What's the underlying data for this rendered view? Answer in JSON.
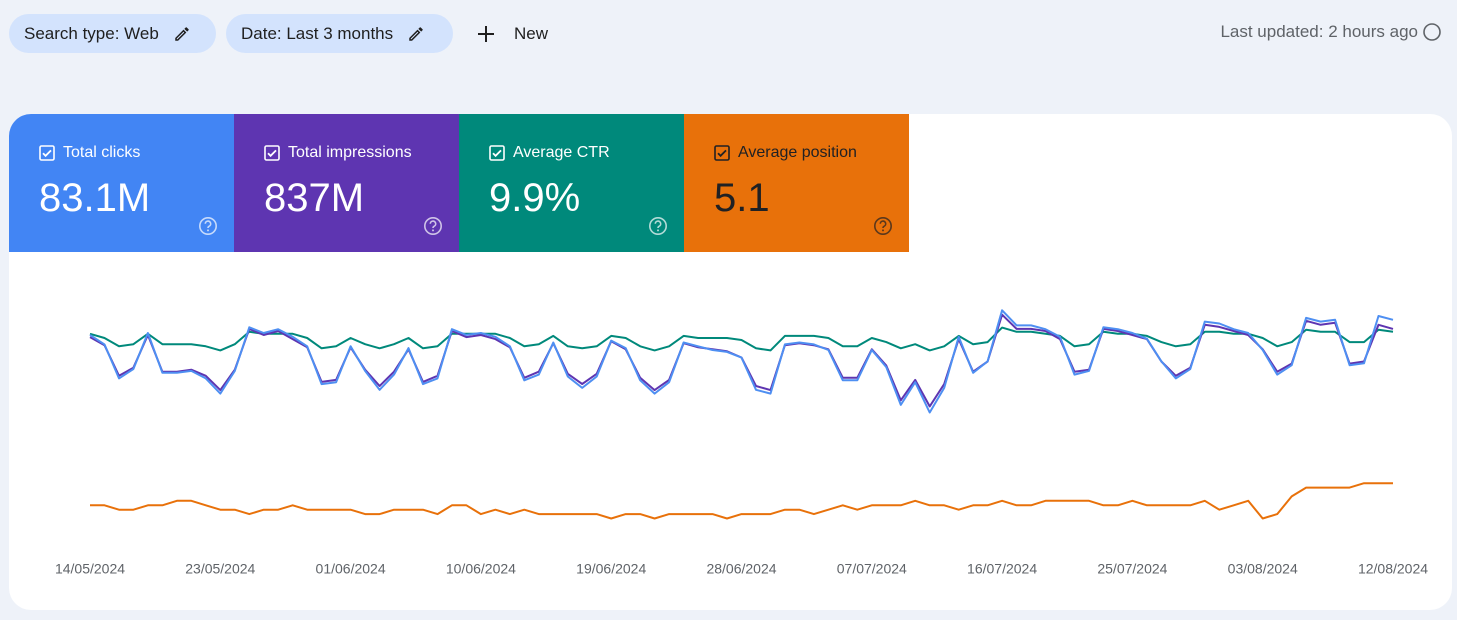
{
  "toolbar": {
    "chips": [
      "Search type: Web",
      "Date: Last 3 months"
    ],
    "new_button": "New",
    "last_updated": "Last updated: 2 hours ago"
  },
  "chart_data": {
    "type": "line",
    "categories": [
      "14/05/2024",
      null,
      null,
      null,
      null,
      null,
      null,
      null,
      null,
      "23/05/2024",
      null,
      null,
      null,
      null,
      null,
      null,
      null,
      null,
      "01/06/2024",
      null,
      null,
      null,
      null,
      null,
      null,
      null,
      null,
      "10/06/2024",
      null,
      null,
      null,
      null,
      null,
      null,
      null,
      null,
      "19/06/2024",
      null,
      null,
      null,
      null,
      null,
      null,
      null,
      null,
      "28/06/2024",
      null,
      null,
      null,
      null,
      null,
      null,
      null,
      null,
      "07/07/2024",
      null,
      null,
      null,
      null,
      null,
      null,
      null,
      null,
      "16/07/2024",
      null,
      null,
      null,
      null,
      null,
      null,
      null,
      null,
      "25/07/2024",
      null,
      null,
      null,
      null,
      null,
      null,
      null,
      null,
      "03/08/2024",
      null,
      null,
      null,
      null,
      null,
      null,
      null,
      null,
      "12/08/2024"
    ],
    "series": [
      {
        "name": "Total clicks",
        "total": "83.1M",
        "color": "#4285f4",
        "line_color": "#4e8ff2",
        "text_color": "#ffffff",
        "ylim": [
          0,
          1.4
        ],
        "values": [
          1.11,
          1.06,
          0.88,
          0.93,
          1.12,
          0.91,
          0.91,
          0.92,
          0.88,
          0.8,
          0.92,
          1.15,
          1.12,
          1.14,
          1.1,
          1.05,
          0.85,
          0.86,
          1.05,
          0.92,
          0.82,
          0.9,
          1.04,
          0.85,
          0.88,
          1.14,
          1.11,
          1.12,
          1.1,
          1.05,
          0.87,
          0.9,
          1.07,
          0.89,
          0.83,
          0.89,
          1.08,
          1.04,
          0.87,
          0.8,
          0.86,
          1.07,
          1.05,
          1.03,
          1.02,
          0.99,
          0.82,
          0.8,
          1.06,
          1.07,
          1.06,
          1.03,
          0.87,
          0.87,
          1.03,
          0.94,
          0.74,
          0.86,
          0.7,
          0.83,
          1.1,
          0.91,
          0.97,
          1.24,
          1.16,
          1.16,
          1.14,
          1.1,
          0.9,
          0.92,
          1.15,
          1.14,
          1.12,
          1.09,
          0.97,
          0.88,
          0.93,
          1.18,
          1.17,
          1.14,
          1.12,
          1.03,
          0.9,
          0.95,
          1.2,
          1.18,
          1.19,
          0.95,
          0.96,
          1.21,
          1.19
        ]
      },
      {
        "name": "Total impressions",
        "total": "837M",
        "color": "#5e35b1",
        "line_color": "#5e35b1",
        "text_color": "#ffffff",
        "ylim": [
          0,
          13
        ],
        "values": [
          10.2,
          9.8,
          8.3,
          8.7,
          10.3,
          8.5,
          8.5,
          8.6,
          8.3,
          7.6,
          8.6,
          10.6,
          10.3,
          10.5,
          10.1,
          9.7,
          8.0,
          8.1,
          9.7,
          8.6,
          7.8,
          8.5,
          9.6,
          8.0,
          8.3,
          10.5,
          10.2,
          10.3,
          10.1,
          9.7,
          8.2,
          8.5,
          9.9,
          8.4,
          7.9,
          8.4,
          10.0,
          9.6,
          8.2,
          7.6,
          8.1,
          9.9,
          9.7,
          9.6,
          9.5,
          9.2,
          7.8,
          7.6,
          9.8,
          9.9,
          9.8,
          9.6,
          8.2,
          8.2,
          9.6,
          8.8,
          7.1,
          8.1,
          6.8,
          7.9,
          10.1,
          8.5,
          9.0,
          11.3,
          10.6,
          10.6,
          10.5,
          10.1,
          8.5,
          8.6,
          10.6,
          10.5,
          10.3,
          10.1,
          9.0,
          8.3,
          8.7,
          10.8,
          10.7,
          10.5,
          10.3,
          9.6,
          8.5,
          8.9,
          11.0,
          10.8,
          10.9,
          8.9,
          9.0,
          10.8,
          10.6
        ]
      },
      {
        "name": "Average CTR",
        "total": "9.9%",
        "color": "#00897b",
        "line_color": "#00897b",
        "text_color": "#ffffff",
        "ylim": [
          0,
          12.8
        ],
        "values": [
          10.2,
          10.0,
          9.6,
          9.7,
          10.2,
          9.7,
          9.7,
          9.7,
          9.6,
          9.4,
          9.7,
          10.3,
          10.2,
          10.2,
          10.2,
          10.0,
          9.5,
          9.6,
          10.0,
          9.7,
          9.5,
          9.7,
          10.0,
          9.5,
          9.6,
          10.2,
          10.2,
          10.2,
          10.2,
          10.0,
          9.6,
          9.7,
          10.1,
          9.6,
          9.5,
          9.6,
          10.1,
          10.0,
          9.6,
          9.4,
          9.6,
          10.1,
          10.0,
          10.0,
          10.0,
          9.9,
          9.5,
          9.4,
          10.1,
          10.1,
          10.1,
          10.0,
          9.6,
          9.6,
          10.0,
          9.8,
          9.5,
          9.7,
          9.4,
          9.6,
          10.1,
          9.7,
          9.8,
          10.5,
          10.3,
          10.3,
          10.2,
          10.1,
          9.6,
          9.7,
          10.3,
          10.2,
          10.2,
          10.1,
          9.8,
          9.6,
          9.7,
          10.3,
          10.3,
          10.2,
          10.2,
          10.0,
          9.6,
          9.8,
          10.4,
          10.3,
          10.3,
          9.8,
          9.8,
          10.4,
          10.3
        ]
      },
      {
        "name": "Average position",
        "total": "5.1",
        "color": "#e8710a",
        "line_color": "#e8710a",
        "text_color": "#202124",
        "ylim": [
          6,
          0
        ],
        "values": [
          5.1,
          5.1,
          5.2,
          5.2,
          5.1,
          5.1,
          5.0,
          5.0,
          5.1,
          5.2,
          5.2,
          5.3,
          5.2,
          5.2,
          5.1,
          5.2,
          5.2,
          5.2,
          5.2,
          5.3,
          5.3,
          5.2,
          5.2,
          5.2,
          5.3,
          5.1,
          5.1,
          5.3,
          5.2,
          5.3,
          5.2,
          5.3,
          5.3,
          5.3,
          5.3,
          5.3,
          5.4,
          5.3,
          5.3,
          5.4,
          5.3,
          5.3,
          5.3,
          5.3,
          5.4,
          5.3,
          5.3,
          5.3,
          5.2,
          5.2,
          5.3,
          5.2,
          5.1,
          5.2,
          5.1,
          5.1,
          5.1,
          5.0,
          5.1,
          5.1,
          5.2,
          5.1,
          5.1,
          5.0,
          5.1,
          5.1,
          5.0,
          5.0,
          5.0,
          5.0,
          5.1,
          5.1,
          5.0,
          5.1,
          5.1,
          5.1,
          5.1,
          5.0,
          5.2,
          5.1,
          5.0,
          5.4,
          5.3,
          4.9,
          4.7,
          4.7,
          4.7,
          4.7,
          4.6,
          4.6,
          4.6
        ]
      }
    ]
  }
}
